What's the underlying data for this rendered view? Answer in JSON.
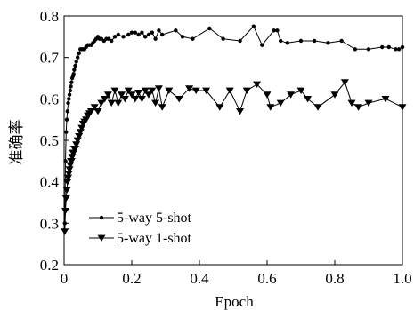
{
  "chart_data": {
    "type": "line",
    "xlabel": "Epoch",
    "ylabel": "准确率",
    "xlim": [
      0,
      1.0
    ],
    "ylim": [
      0.2,
      0.8
    ],
    "xticks": [
      "0",
      "0.2",
      "0.4",
      "0.6",
      "0.8",
      "1.0"
    ],
    "yticks": [
      "0.2",
      "0.3",
      "0.4",
      "0.5",
      "0.6",
      "0.7",
      "0.8"
    ],
    "grid": false,
    "legend_position": "bottom-left",
    "series": [
      {
        "name": "5-way 5-shot",
        "marker": "circle",
        "x": [
          0.002,
          0.004,
          0.006,
          0.008,
          0.01,
          0.012,
          0.014,
          0.016,
          0.018,
          0.02,
          0.022,
          0.024,
          0.026,
          0.028,
          0.03,
          0.033,
          0.036,
          0.04,
          0.044,
          0.048,
          0.052,
          0.056,
          0.06,
          0.065,
          0.07,
          0.075,
          0.08,
          0.085,
          0.09,
          0.095,
          0.1,
          0.105,
          0.11,
          0.118,
          0.125,
          0.132,
          0.14,
          0.15,
          0.16,
          0.175,
          0.19,
          0.2,
          0.21,
          0.22,
          0.23,
          0.24,
          0.25,
          0.26,
          0.27,
          0.28,
          0.29,
          0.33,
          0.35,
          0.38,
          0.43,
          0.47,
          0.52,
          0.56,
          0.585,
          0.62,
          0.63,
          0.64,
          0.66,
          0.7,
          0.74,
          0.78,
          0.82,
          0.86,
          0.9,
          0.94,
          0.96,
          0.98,
          0.99,
          1.0
        ],
        "values": [
          0.3,
          0.45,
          0.52,
          0.55,
          0.57,
          0.59,
          0.6,
          0.61,
          0.62,
          0.63,
          0.64,
          0.65,
          0.655,
          0.66,
          0.67,
          0.68,
          0.69,
          0.7,
          0.71,
          0.72,
          0.72,
          0.72,
          0.72,
          0.725,
          0.73,
          0.73,
          0.73,
          0.735,
          0.74,
          0.745,
          0.75,
          0.745,
          0.745,
          0.74,
          0.745,
          0.745,
          0.74,
          0.75,
          0.755,
          0.75,
          0.755,
          0.76,
          0.76,
          0.755,
          0.76,
          0.75,
          0.755,
          0.76,
          0.745,
          0.765,
          0.755,
          0.765,
          0.75,
          0.745,
          0.77,
          0.745,
          0.74,
          0.775,
          0.73,
          0.765,
          0.765,
          0.74,
          0.735,
          0.74,
          0.74,
          0.735,
          0.74,
          0.72,
          0.72,
          0.725,
          0.725,
          0.72,
          0.72,
          0.725
        ]
      },
      {
        "name": "5-way 1-shot",
        "marker": "triangle-down",
        "x": [
          0.002,
          0.004,
          0.006,
          0.008,
          0.01,
          0.012,
          0.014,
          0.016,
          0.018,
          0.02,
          0.022,
          0.024,
          0.026,
          0.028,
          0.03,
          0.033,
          0.036,
          0.04,
          0.044,
          0.048,
          0.052,
          0.056,
          0.06,
          0.065,
          0.07,
          0.075,
          0.08,
          0.09,
          0.1,
          0.11,
          0.12,
          0.13,
          0.14,
          0.15,
          0.16,
          0.17,
          0.18,
          0.19,
          0.2,
          0.21,
          0.22,
          0.23,
          0.24,
          0.25,
          0.26,
          0.27,
          0.28,
          0.29,
          0.31,
          0.34,
          0.37,
          0.39,
          0.42,
          0.46,
          0.49,
          0.52,
          0.54,
          0.57,
          0.6,
          0.61,
          0.64,
          0.67,
          0.7,
          0.72,
          0.75,
          0.8,
          0.83,
          0.85,
          0.87,
          0.9,
          0.95,
          1.0
        ],
        "values": [
          0.28,
          0.33,
          0.36,
          0.38,
          0.4,
          0.41,
          0.42,
          0.43,
          0.44,
          0.45,
          0.45,
          0.46,
          0.47,
          0.47,
          0.48,
          0.48,
          0.49,
          0.5,
          0.51,
          0.52,
          0.53,
          0.54,
          0.545,
          0.55,
          0.56,
          0.565,
          0.57,
          0.58,
          0.57,
          0.59,
          0.6,
          0.61,
          0.59,
          0.62,
          0.59,
          0.61,
          0.6,
          0.62,
          0.61,
          0.6,
          0.615,
          0.6,
          0.62,
          0.61,
          0.62,
          0.59,
          0.625,
          0.58,
          0.62,
          0.6,
          0.625,
          0.62,
          0.62,
          0.58,
          0.62,
          0.57,
          0.62,
          0.635,
          0.61,
          0.58,
          0.59,
          0.61,
          0.62,
          0.6,
          0.58,
          0.61,
          0.64,
          0.59,
          0.58,
          0.59,
          0.6,
          0.58
        ]
      }
    ]
  }
}
